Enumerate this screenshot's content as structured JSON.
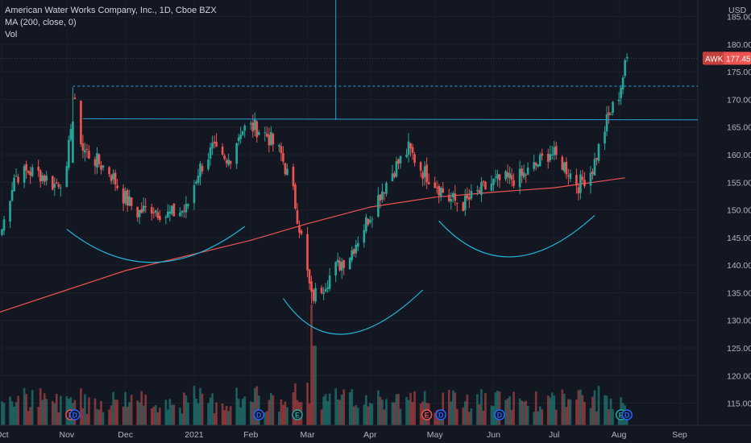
{
  "legend": {
    "title": "American Water Works Company, Inc., 1D, Cboe BZX",
    "ma": "MA (200, close, 0)",
    "vol": "Vol"
  },
  "price_axis": {
    "currency": "USD",
    "ticks": [
      185,
      180,
      175,
      170,
      165,
      160,
      155,
      150,
      145,
      140,
      135,
      130,
      125,
      120,
      115
    ]
  },
  "price_tag": {
    "symbol": "AWK",
    "value": "177.45"
  },
  "time_axis": [
    "Oct",
    "Nov",
    "Dec",
    "2021",
    "Feb",
    "Mar",
    "Apr",
    "May",
    "Jun",
    "Jul",
    "Aug",
    "Sep"
  ],
  "colors": {
    "background": "#131722",
    "up": "#26a69a",
    "down": "#ef5350",
    "ma": "#ef5350",
    "drawing": "#2a9fd6",
    "tag": "#ef5350"
  },
  "event_markers": [
    {
      "label": "E",
      "color": "#ef5350",
      "date": "2020-11-04"
    },
    {
      "label": "D",
      "color": "#2962ff",
      "date": "2020-11-06"
    },
    {
      "label": "D",
      "color": "#2962ff",
      "date": "2021-02-05"
    },
    {
      "label": "E",
      "color": "#26a69a",
      "date": "2021-02-24"
    },
    {
      "label": "E",
      "color": "#ef5350",
      "date": "2021-04-29"
    },
    {
      "label": "D",
      "color": "#2962ff",
      "date": "2021-05-06"
    },
    {
      "label": "D",
      "color": "#2962ff",
      "date": "2021-06-04"
    },
    {
      "label": "E",
      "color": "#26a69a",
      "date": "2021-08-03"
    },
    {
      "label": "D",
      "color": "#2962ff",
      "date": "2021-08-06"
    }
  ],
  "chart_data": {
    "type": "candlestick",
    "title": "American Water Works Company, Inc., 1D, Cboe BZX",
    "ylim": [
      111,
      188
    ],
    "xlim": [
      "2020-09-30",
      "2021-09-10"
    ],
    "resistance_level": 166.3,
    "dotted_high_level": 172.4,
    "last_close": 177.45,
    "ma_200": [
      [
        "2020-09-30",
        131.5
      ],
      [
        "2020-11-02",
        135.5
      ],
      [
        "2020-12-01",
        139.0
      ],
      [
        "2021-01-04",
        142.0
      ],
      [
        "2021-02-01",
        144.5
      ],
      [
        "2021-03-01",
        147.5
      ],
      [
        "2021-04-01",
        150.5
      ],
      [
        "2021-05-03",
        152.3
      ],
      [
        "2021-06-01",
        153.2
      ],
      [
        "2021-07-01",
        154.0
      ],
      [
        "2021-08-05",
        155.8
      ]
    ],
    "price_path": [
      [
        "2020-10-01",
        146.5
      ],
      [
        "2020-10-07",
        156.0
      ],
      [
        "2020-10-14",
        157.0
      ],
      [
        "2020-10-20",
        156.5
      ],
      [
        "2020-10-27",
        154.5
      ],
      [
        "2020-11-02",
        156.5
      ],
      [
        "2020-11-05",
        170.5
      ],
      [
        "2020-11-10",
        161.0
      ],
      [
        "2020-11-16",
        159.0
      ],
      [
        "2020-11-23",
        157.0
      ],
      [
        "2020-11-30",
        152.5
      ],
      [
        "2020-12-07",
        149.5
      ],
      [
        "2020-12-14",
        150.5
      ],
      [
        "2020-12-21",
        149.0
      ],
      [
        "2020-12-31",
        150.0
      ],
      [
        "2021-01-06",
        157.0
      ],
      [
        "2021-01-13",
        161.0
      ],
      [
        "2021-01-20",
        158.0
      ],
      [
        "2021-01-27",
        164.5
      ],
      [
        "2021-02-03",
        165.0
      ],
      [
        "2021-02-09",
        163.5
      ],
      [
        "2021-02-16",
        160.0
      ],
      [
        "2021-02-22",
        153.0
      ],
      [
        "2021-02-26",
        145.0
      ],
      [
        "2021-03-03",
        134.0
      ],
      [
        "2021-03-08",
        136.0
      ],
      [
        "2021-03-15",
        139.5
      ],
      [
        "2021-03-22",
        142.0
      ],
      [
        "2021-03-29",
        147.0
      ],
      [
        "2021-04-06",
        153.0
      ],
      [
        "2021-04-13",
        157.5
      ],
      [
        "2021-04-20",
        161.0
      ],
      [
        "2021-04-27",
        157.0
      ],
      [
        "2021-05-03",
        155.0
      ],
      [
        "2021-05-10",
        152.0
      ],
      [
        "2021-05-17",
        151.0
      ],
      [
        "2021-05-24",
        153.0
      ],
      [
        "2021-06-01",
        155.0
      ],
      [
        "2021-06-08",
        155.5
      ],
      [
        "2021-06-15",
        156.0
      ],
      [
        "2021-06-22",
        158.0
      ],
      [
        "2021-06-29",
        160.5
      ],
      [
        "2021-07-06",
        158.0
      ],
      [
        "2021-07-13",
        154.5
      ],
      [
        "2021-07-20",
        157.5
      ],
      [
        "2021-07-27",
        166.0
      ],
      [
        "2021-08-02",
        171.0
      ],
      [
        "2021-08-06",
        177.45
      ]
    ],
    "drawings": {
      "arcs": [
        {
          "from": [
            "2020-11-02",
            146.5
          ],
          "bottom": [
            "2020-12-15",
            140.5
          ],
          "to": [
            "2021-01-29",
            147.0
          ]
        },
        {
          "from": [
            "2021-02-17",
            134.0
          ],
          "bottom": [
            "2021-03-19",
            127.5
          ],
          "to": [
            "2021-04-27",
            135.5
          ]
        },
        {
          "from": [
            "2021-05-05",
            148.0
          ],
          "bottom": [
            "2021-06-10",
            141.5
          ],
          "to": [
            "2021-07-21",
            149.0
          ]
        }
      ]
    }
  }
}
